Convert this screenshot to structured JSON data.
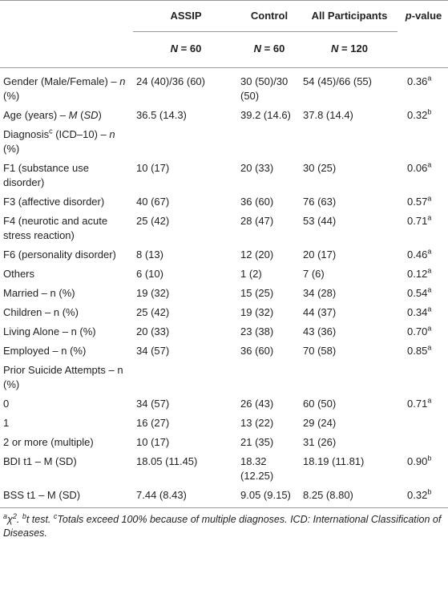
{
  "header": {
    "columns": [
      "ASSIP",
      "Control",
      "All Participants"
    ],
    "pvalue": [
      {
        "t": "p",
        "italic": true
      },
      "-value"
    ],
    "counts": [
      [
        {
          "t": "N",
          "italic": true
        },
        " = 60"
      ],
      [
        {
          "t": "N",
          "italic": true
        },
        " = 60"
      ],
      [
        {
          "t": "N",
          "italic": true
        },
        " = 120"
      ]
    ]
  },
  "table": {
    "rows": [
      {
        "label": [
          "Gender (Male/Female) – ",
          {
            "t": "n",
            "italic": true
          },
          " (%)"
        ],
        "cells": [
          "24 (40)/36 (60)",
          "30 (50)/30 (50)",
          "54 (45)/66 (55)"
        ],
        "p": [
          "0.36",
          {
            "t": "a",
            "sup": true
          }
        ]
      },
      {
        "label": [
          "Age (years) – ",
          {
            "t": "M",
            "italic": true
          },
          " (",
          {
            "t": "SD",
            "italic": true
          },
          ")"
        ],
        "cells": [
          "36.5 (14.3)",
          "39.2 (14.6)",
          "37.8 (14.4)"
        ],
        "p": [
          "0.32",
          {
            "t": "b",
            "sup": true
          }
        ]
      },
      {
        "label": [
          "Diagnosis",
          {
            "t": "c",
            "sup": true
          },
          " (ICD–10) – ",
          {
            "t": "n",
            "italic": true
          },
          " (%)"
        ]
      },
      {
        "label": [
          "F1 (substance use disorder)"
        ],
        "cells": [
          "10 (17)",
          "20 (33)",
          "30 (25)"
        ],
        "p": [
          "0.06",
          {
            "t": "a",
            "sup": true
          }
        ]
      },
      {
        "label": [
          "F3 (affective disorder)"
        ],
        "cells": [
          "40 (67)",
          "36 (60)",
          "76 (63)"
        ],
        "p": [
          "0.57",
          {
            "t": "a",
            "sup": true
          }
        ]
      },
      {
        "label": [
          "F4 (neurotic and acute stress reaction)"
        ],
        "cells": [
          "25 (42)",
          "28 (47)",
          "53 (44)"
        ],
        "p": [
          "0.71",
          {
            "t": "a",
            "sup": true
          }
        ]
      },
      {
        "label": [
          "F6 (personality disorder)"
        ],
        "cells": [
          "8 (13)",
          "12 (20)",
          "20 (17)"
        ],
        "p": [
          "0.46",
          {
            "t": "a",
            "sup": true
          }
        ]
      },
      {
        "label": [
          "Others"
        ],
        "cells": [
          "6 (10)",
          "1 (2)",
          "7 (6)"
        ],
        "p": [
          "0.12",
          {
            "t": "a",
            "sup": true
          }
        ]
      },
      {
        "label": [
          "Married – n (%)"
        ],
        "cells": [
          "19 (32)",
          "15 (25)",
          "34 (28)"
        ],
        "p": [
          "0.54",
          {
            "t": "a",
            "sup": true
          }
        ]
      },
      {
        "label": [
          "Children – n (%)"
        ],
        "cells": [
          "25 (42)",
          "19 (32)",
          "44 (37)"
        ],
        "p": [
          "0.34",
          {
            "t": "a",
            "sup": true
          }
        ]
      },
      {
        "label": [
          "Living Alone – n (%)"
        ],
        "cells": [
          "20 (33)",
          "23 (38)",
          "43 (36)"
        ],
        "p": [
          "0.70",
          {
            "t": "a",
            "sup": true
          }
        ]
      },
      {
        "label": [
          "Employed – n (%)"
        ],
        "cells": [
          "34 (57)",
          "36 (60)",
          "70 (58)"
        ],
        "p": [
          "0.85",
          {
            "t": "a",
            "sup": true
          }
        ]
      },
      {
        "label": [
          "Prior Suicide Attempts – n (%)"
        ]
      },
      {
        "label": [
          "0"
        ],
        "cells": [
          "34 (57)",
          "26 (43)",
          "60 (50)"
        ],
        "p": [
          "0.71",
          {
            "t": "a",
            "sup": true
          }
        ]
      },
      {
        "label": [
          "1"
        ],
        "cells": [
          "16 (27)",
          "13 (22)",
          "29 (24)"
        ]
      },
      {
        "label": [
          "2 or more (multiple)"
        ],
        "cells": [
          "10 (17)",
          "21 (35)",
          "31 (26)"
        ]
      },
      {
        "label": [
          "BDI t1 – M (SD)"
        ],
        "cells": [
          "18.05 (11.45)",
          "18.32 (12.25)",
          "18.19 (11.81)"
        ],
        "p": [
          "0.90",
          {
            "t": "b",
            "sup": true
          }
        ]
      },
      {
        "label": [
          "BSS t1 – M (SD)"
        ],
        "cells": [
          "7.44 (8.43)",
          "9.05 (9.15)",
          "8.25 (8.80)"
        ],
        "p": [
          "0.32",
          {
            "t": "b",
            "sup": true
          }
        ]
      }
    ]
  },
  "footnote": [
    {
      "t": "a",
      "sup": true
    },
    "χ",
    {
      "t": "2",
      "sup": true
    },
    ". ",
    {
      "t": "b",
      "sup": true
    },
    "t test. ",
    {
      "t": "c",
      "sup": true
    },
    "Totals exceed 100% because of multiple diagnoses. ICD: International Classification of Diseases."
  ]
}
